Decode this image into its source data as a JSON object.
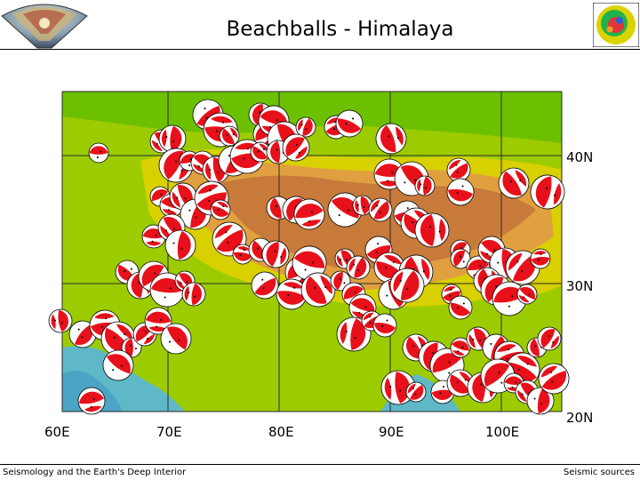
{
  "title": "Beachballs - Himalaya",
  "footer": {
    "left": "Seismology and the Earth's Deep Interior",
    "right": "Seismic sources"
  },
  "map": {
    "lon_labels": [
      "60E",
      "70E",
      "80E",
      "90E",
      "100E"
    ],
    "lat_labels": [
      "40N",
      "30N",
      "20N"
    ],
    "colors": {
      "beachball_compression": "#e8101a",
      "plateau": "#d98a3c",
      "lowland": "#a8d400",
      "ocean": "#5fb8c8"
    }
  },
  "icons": {
    "left_logo": "globe-cutaway-icon",
    "right_logo": "tomography-globe-icon"
  }
}
